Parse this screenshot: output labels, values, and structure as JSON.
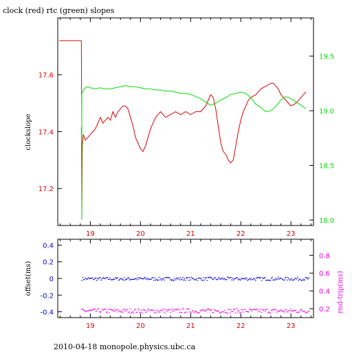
{
  "title": "clock (red) rtc (green) slopes",
  "footer": "2010-04-18 monopole.physics.ubc.ca",
  "colors": {
    "red": "#dd0000",
    "green": "#00dd00",
    "blue": "#0000dd",
    "magenta": "#ee00ee",
    "frame": "#000000"
  },
  "chart_data": [
    {
      "type": "line",
      "ylabel": "clockslope",
      "y2label": "",
      "xlim": [
        18.35,
        23.45
      ],
      "ylim": [
        17.07,
        17.8
      ],
      "y2lim": [
        17.95,
        19.85
      ],
      "x_ticks": [
        19,
        20,
        21,
        22,
        23
      ],
      "y_ticks": [
        17.2,
        17.4,
        17.6
      ],
      "y2_ticks": [
        18,
        18.5,
        19,
        19.5
      ],
      "series": [
        {
          "name": "clock",
          "color": "#dd0000",
          "axis": "left",
          "x": [
            18.38,
            18.5,
            18.6,
            18.7,
            18.8,
            18.82,
            18.83,
            18.83,
            18.84,
            18.86,
            18.88,
            18.9,
            18.95,
            19.0,
            19.05,
            19.1,
            19.15,
            19.2,
            19.25,
            19.3,
            19.35,
            19.4,
            19.45,
            19.5,
            19.55,
            19.6,
            19.65,
            19.7,
            19.75,
            19.8,
            19.85,
            19.9,
            19.95,
            20.0,
            20.05,
            20.1,
            20.15,
            20.2,
            20.25,
            20.3,
            20.35,
            20.4,
            20.45,
            20.5,
            20.6,
            20.7,
            20.8,
            20.9,
            21.0,
            21.1,
            21.2,
            21.3,
            21.35,
            21.4,
            21.45,
            21.5,
            21.55,
            21.6,
            21.65,
            21.7,
            21.75,
            21.8,
            21.85,
            21.9,
            21.95,
            22.0,
            22.05,
            22.1,
            22.15,
            22.2,
            22.3,
            22.4,
            22.5,
            22.6,
            22.65,
            22.7,
            22.75,
            22.8,
            22.9,
            23.0,
            23.1,
            23.2,
            23.3
          ],
          "y": [
            17.72,
            17.72,
            17.72,
            17.72,
            17.72,
            17.72,
            17.42,
            17.1,
            17.35,
            17.39,
            17.38,
            17.37,
            17.38,
            17.39,
            17.4,
            17.41,
            17.43,
            17.45,
            17.43,
            17.44,
            17.45,
            17.44,
            17.47,
            17.45,
            17.47,
            17.48,
            17.49,
            17.49,
            17.48,
            17.45,
            17.42,
            17.38,
            17.36,
            17.34,
            17.33,
            17.35,
            17.38,
            17.41,
            17.43,
            17.45,
            17.46,
            17.47,
            17.46,
            17.45,
            17.46,
            17.47,
            17.46,
            17.47,
            17.46,
            17.47,
            17.47,
            17.49,
            17.51,
            17.53,
            17.52,
            17.48,
            17.42,
            17.36,
            17.33,
            17.32,
            17.3,
            17.29,
            17.3,
            17.35,
            17.4,
            17.44,
            17.47,
            17.49,
            17.51,
            17.52,
            17.53,
            17.55,
            17.56,
            17.57,
            17.57,
            17.56,
            17.55,
            17.53,
            17.51,
            17.49,
            17.5,
            17.52,
            17.54
          ]
        },
        {
          "name": "rtc",
          "color": "#00dd00",
          "axis": "right",
          "x": [
            18.82,
            18.83,
            18.83,
            18.84,
            18.86,
            18.88,
            18.9,
            18.95,
            19.0,
            19.1,
            19.2,
            19.3,
            19.4,
            19.5,
            19.6,
            19.7,
            19.8,
            19.9,
            20.0,
            20.1,
            20.2,
            20.3,
            20.4,
            20.5,
            20.6,
            20.7,
            20.8,
            20.9,
            21.0,
            21.1,
            21.2,
            21.3,
            21.4,
            21.5,
            21.6,
            21.7,
            21.8,
            21.9,
            22.0,
            22.1,
            22.2,
            22.3,
            22.4,
            22.5,
            22.6,
            22.7,
            22.8,
            22.9,
            23.0,
            23.1,
            23.2,
            23.3
          ],
          "y": [
            18.85,
            18.0,
            19.15,
            19.17,
            19.18,
            19.2,
            19.21,
            19.22,
            19.21,
            19.2,
            19.21,
            19.2,
            19.2,
            19.21,
            19.22,
            19.23,
            19.22,
            19.22,
            19.21,
            19.2,
            19.2,
            19.19,
            19.19,
            19.18,
            19.18,
            19.17,
            19.16,
            19.16,
            19.15,
            19.13,
            19.11,
            19.08,
            19.05,
            19.07,
            19.1,
            19.12,
            19.15,
            19.16,
            19.17,
            19.16,
            19.12,
            19.06,
            19.03,
            18.99,
            19.0,
            19.04,
            19.1,
            19.13,
            19.11,
            19.08,
            19.05,
            19.02
          ]
        }
      ]
    },
    {
      "type": "scatter",
      "ylabel": "offset(ms)",
      "y2label": "rnd-trip(ms)",
      "xlim": [
        18.35,
        23.45
      ],
      "ylim": [
        -0.47,
        0.47
      ],
      "y2lim": [
        0.1,
        0.98
      ],
      "x_ticks": [
        19,
        20,
        21,
        22,
        23
      ],
      "y_ticks": [
        -0.4,
        -0.2,
        0,
        0.2,
        0.4
      ],
      "y_tick_labels": [
        "-0.4",
        "-0.2",
        "0",
        "0.2",
        "0.4"
      ],
      "y2_ticks": [
        0.2,
        0.4,
        0.6,
        0.8
      ],
      "series": [
        {
          "name": "offset",
          "color": "#0000dd",
          "axis": "left",
          "x_range": [
            18.82,
            23.35
          ],
          "level": 0.0,
          "spread": 0.02
        },
        {
          "name": "rnd-trip",
          "color": "#ee00ee",
          "axis": "right",
          "x_range": [
            18.82,
            23.35
          ],
          "level": 0.18,
          "spread": 0.025
        }
      ]
    }
  ]
}
